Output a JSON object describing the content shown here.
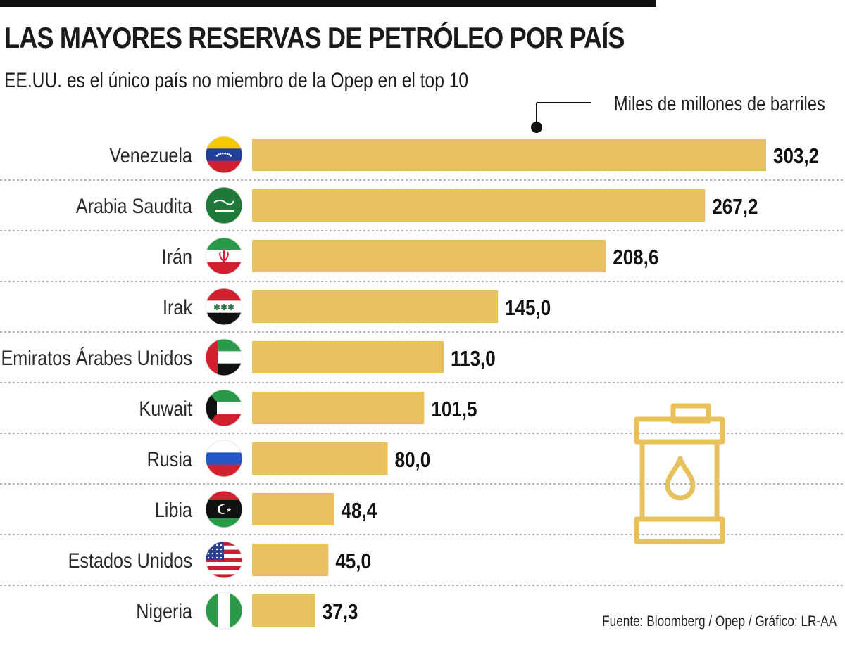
{
  "title": "LAS MAYORES RESERVAS DE PETRÓLEO POR PAÍS",
  "subtitle": "EE.UU. es el único país no miembro de la Opep en el top 10",
  "units_label": "Miles de millones de barriles",
  "source": "Fuente: Bloomberg / Opep / Gráfico: LR-AA",
  "colors": {
    "bar": "#e8c15f",
    "icon": "#e8c15f",
    "divider": "#9a9a9a",
    "text": "#1a1a1a"
  },
  "chart_data": {
    "type": "bar",
    "orientation": "horizontal",
    "title": "LAS MAYORES RESERVAS DE PETRÓLEO POR PAÍS",
    "xlabel": "Miles de millones de barriles",
    "ylabel": "",
    "xlim": [
      0,
      303.2
    ],
    "grid": false,
    "categories": [
      "Venezuela",
      "Arabia Saudita",
      "Irán",
      "Irak",
      "Emiratos Árabes Unidos",
      "Kuwait",
      "Rusia",
      "Libia",
      "Estados Unidos",
      "Nigeria"
    ],
    "values": [
      303.2,
      267.2,
      208.6,
      145.0,
      113.0,
      101.5,
      80.0,
      48.4,
      45.0,
      37.3
    ],
    "value_labels": [
      "303,2",
      "267,2",
      "208,6",
      "145,0",
      "113,0",
      "101,5",
      "80,0",
      "48,4",
      "45,0",
      "37,3"
    ],
    "flags": [
      "venezuela",
      "saudi-arabia",
      "iran",
      "iraq",
      "uae",
      "kuwait",
      "russia",
      "libya",
      "usa",
      "nigeria"
    ]
  }
}
